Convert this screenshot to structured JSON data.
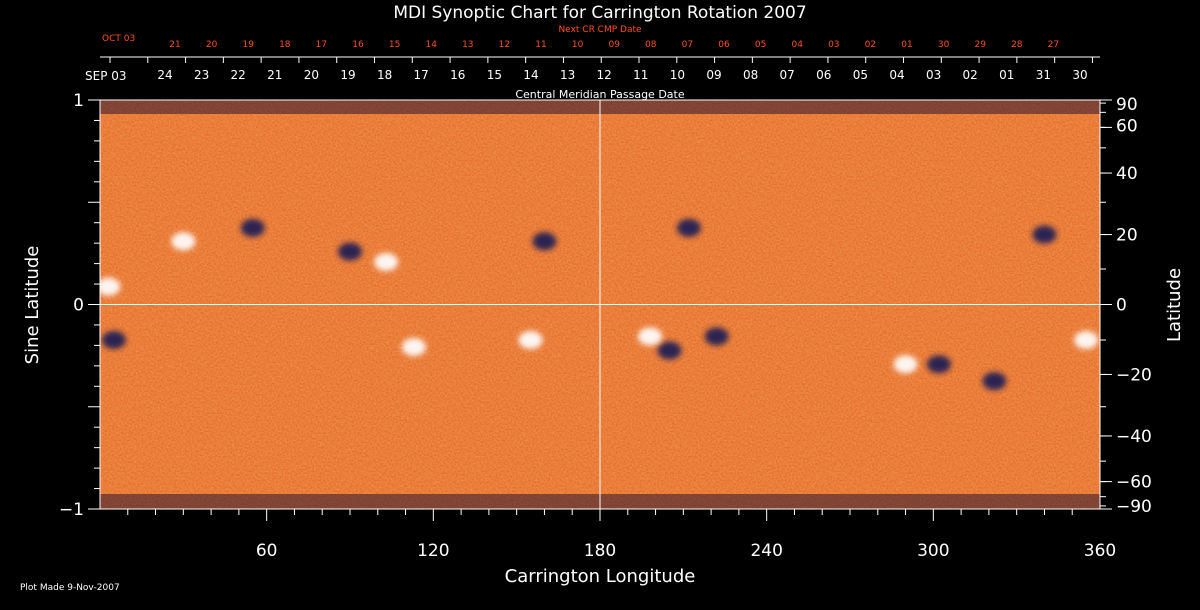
{
  "chart_data": {
    "type": "heatmap",
    "title": "MDI Synoptic Chart for Carrington Rotation 2007",
    "xlabel": "Carrington Longitude",
    "ylabel_left": "Sine Latitude",
    "ylabel_right": "Latitude",
    "xlim": [
      0,
      360
    ],
    "ylim": [
      -1,
      1
    ],
    "x_ticks": [
      60,
      120,
      180,
      240,
      300,
      360
    ],
    "y_ticks_left": [
      {
        "value": 1,
        "label": "1"
      },
      {
        "value": 0,
        "label": "0"
      },
      {
        "value": -1,
        "label": "−1"
      }
    ],
    "y_ticks_right_deg": [
      {
        "deg": 90,
        "label": "90"
      },
      {
        "deg": 60,
        "label": "60"
      },
      {
        "deg": 40,
        "label": "40"
      },
      {
        "deg": 20,
        "label": "20"
      },
      {
        "deg": 0,
        "label": "0"
      },
      {
        "deg": -20,
        "label": "−20"
      },
      {
        "deg": -40,
        "label": "−40"
      },
      {
        "deg": -60,
        "label": "−60"
      },
      {
        "deg": -90,
        "label": "−90"
      }
    ],
    "top_axis_title": "Central Meridian Passage Date",
    "top_axis_start": "SEP 03",
    "top_axis_dates": [
      "24",
      "23",
      "22",
      "21",
      "20",
      "19",
      "18",
      "17",
      "16",
      "15",
      "14",
      "13",
      "12",
      "11",
      "10",
      "09",
      "08",
      "07",
      "06",
      "05",
      "04",
      "03",
      "02",
      "01",
      "31",
      "30"
    ],
    "next_axis_title": "Next CR CMP Date",
    "next_axis_start": "OCT 03",
    "next_axis_dates": [
      "21",
      "20",
      "19",
      "18",
      "17",
      "16",
      "15",
      "14",
      "13",
      "12",
      "11",
      "10",
      "09",
      "08",
      "07",
      "06",
      "05",
      "04",
      "03",
      "02",
      "01",
      "30",
      "29",
      "28",
      "27"
    ],
    "grid_lines": {
      "longitude": [
        180
      ],
      "sine_latitude": [
        0
      ]
    },
    "active_regions": [
      {
        "lon": 3,
        "lat": 5,
        "polarity": "positive"
      },
      {
        "lon": 5,
        "lat": -10,
        "polarity": "negative"
      },
      {
        "lon": 30,
        "lat": 18,
        "polarity": "positive"
      },
      {
        "lon": 55,
        "lat": 22,
        "polarity": "negative"
      },
      {
        "lon": 90,
        "lat": 15,
        "polarity": "negative"
      },
      {
        "lon": 103,
        "lat": 12,
        "polarity": "positive"
      },
      {
        "lon": 113,
        "lat": -12,
        "polarity": "positive"
      },
      {
        "lon": 160,
        "lat": 18,
        "polarity": "negative"
      },
      {
        "lon": 155,
        "lat": -10,
        "polarity": "positive"
      },
      {
        "lon": 205,
        "lat": -13,
        "polarity": "negative"
      },
      {
        "lon": 198,
        "lat": -9,
        "polarity": "positive"
      },
      {
        "lon": 222,
        "lat": -9,
        "polarity": "negative"
      },
      {
        "lon": 212,
        "lat": 22,
        "polarity": "negative"
      },
      {
        "lon": 290,
        "lat": -17,
        "polarity": "positive"
      },
      {
        "lon": 302,
        "lat": -17,
        "polarity": "negative"
      },
      {
        "lon": 322,
        "lat": -22,
        "polarity": "negative"
      },
      {
        "lon": 340,
        "lat": 20,
        "polarity": "negative"
      },
      {
        "lon": 355,
        "lat": -10,
        "polarity": "positive"
      }
    ],
    "colors": {
      "background": "#000000",
      "field_base": "#e0531a",
      "positive_polarity": "#ffffff",
      "negative_polarity": "#1a1c55",
      "axes": "#ffffff",
      "next_rotation_text": "#ff5020"
    }
  },
  "footer": {
    "plot_made": "Plot Made  9-Nov-2007"
  }
}
